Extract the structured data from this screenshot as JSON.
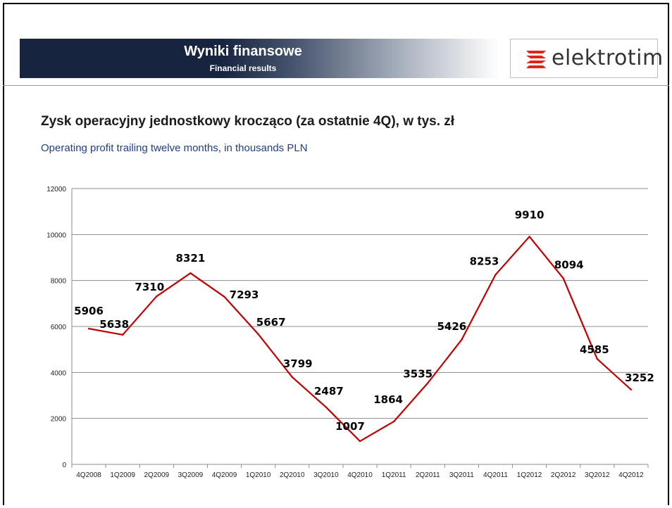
{
  "header": {
    "title": "Wyniki finansowe",
    "subtitle": "Financial results"
  },
  "logo": {
    "text": "elektrotim",
    "icon": "elektrotim-logo-icon",
    "color": "#e2231a"
  },
  "chart_data": {
    "type": "line",
    "title": "Zysk operacyjny jednostkowy krocząco (za ostatnie 4Q), w tys. zł",
    "subtitle": "Operating profit trailing twelve months, in thousands PLN",
    "categories": [
      "4Q2008",
      "1Q2009",
      "2Q2009",
      "3Q2009",
      "4Q2009",
      "1Q2010",
      "2Q2010",
      "3Q2010",
      "4Q2010",
      "1Q2011",
      "2Q2011",
      "3Q2011",
      "4Q2011",
      "1Q2012",
      "2Q2012",
      "3Q2012",
      "4Q2012"
    ],
    "series": [
      {
        "values": [
          5906,
          5638,
          7310,
          8321,
          7293,
          5667,
          3799,
          2487,
          1007,
          1864,
          3535,
          5426,
          8253,
          9910,
          8094,
          4585,
          3252
        ],
        "color": "#c00000"
      }
    ],
    "y_ticks": [
      0,
      2000,
      4000,
      6000,
      8000,
      10000,
      12000
    ],
    "ylim": [
      0,
      12000
    ],
    "grid": true,
    "data_labels": true
  }
}
